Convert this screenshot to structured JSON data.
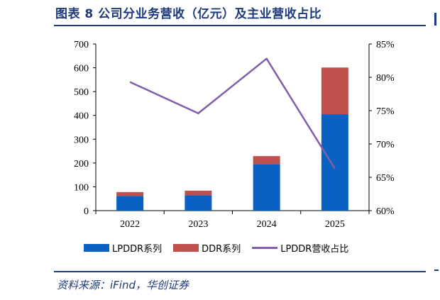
{
  "header": {
    "title": "图表 8   公司分业务营收（亿元）及主业营收占比"
  },
  "source": "资料来源：iFind，华创证券",
  "colors": {
    "lpddr": "#0b61c1",
    "ddr": "#c0504d",
    "share": "#7f5fa8",
    "brand": "#1f3a7a"
  },
  "chart_data": {
    "type": "bar",
    "stacked": true,
    "categories": [
      "2022",
      "2023",
      "2024",
      "2025"
    ],
    "series": [
      {
        "name": "LPDDR系列",
        "type": "bar",
        "axis": "left",
        "values": [
          62,
          65,
          196,
          405
        ]
      },
      {
        "name": "DDR系列",
        "type": "bar",
        "axis": "left",
        "values": [
          16,
          19,
          33,
          196
        ]
      },
      {
        "name": "LPDDR营收占比",
        "type": "line",
        "axis": "right",
        "values": [
          79.3,
          74.6,
          82.8,
          66.3
        ]
      }
    ],
    "y_left": {
      "min": 0,
      "max": 700,
      "ticks": [
        "0",
        "100",
        "200",
        "300",
        "400",
        "500",
        "600",
        "700"
      ]
    },
    "y_right": {
      "min": 60,
      "max": 85,
      "ticks": [
        "60%",
        "65%",
        "70%",
        "75%",
        "80%",
        "85%"
      ]
    },
    "grid": false,
    "legend_position": "bottom"
  }
}
